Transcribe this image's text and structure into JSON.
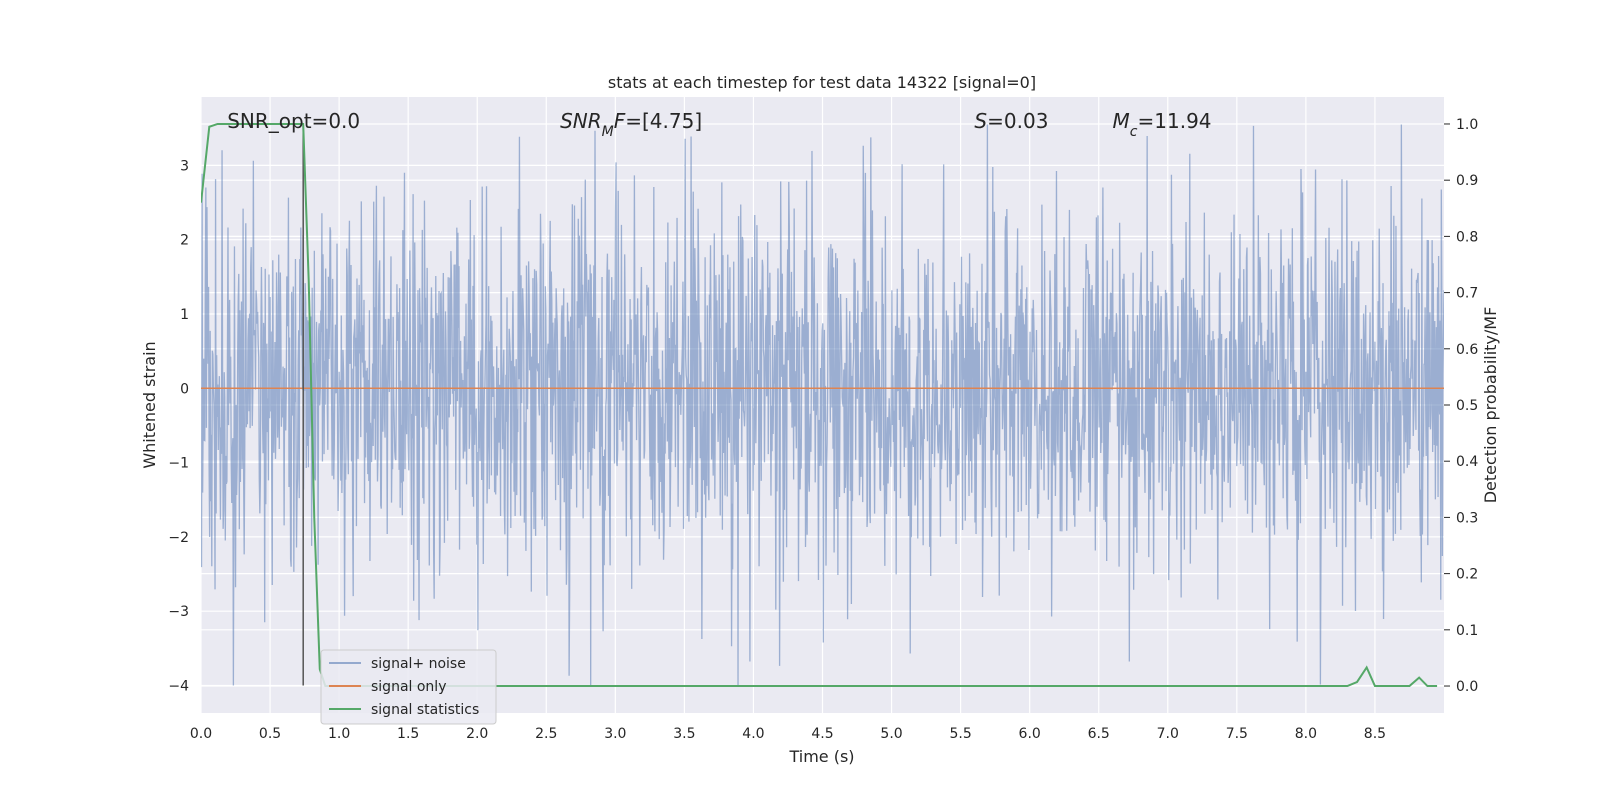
{
  "chart_data": {
    "type": "line",
    "title": "stats at each timestep for test data 14322 [signal=0]",
    "xlabel": "Time (s)",
    "ylabel_left": "Whitened strain",
    "ylabel_right": "Detection probability/MF",
    "xlim": [
      0.0,
      9.0
    ],
    "ylim_left": [
      -4.37,
      3.92
    ],
    "ylim_right": [
      -0.048,
      1.048
    ],
    "x_ticks": [
      0.0,
      0.5,
      1.0,
      1.5,
      2.0,
      2.5,
      3.0,
      3.5,
      4.0,
      4.5,
      5.0,
      5.5,
      6.0,
      6.5,
      7.0,
      7.5,
      8.0,
      8.5
    ],
    "y_ticks_left": [
      -4,
      -3,
      -2,
      -1,
      0,
      1,
      2,
      3
    ],
    "y_ticks_right": [
      0.0,
      0.1,
      0.2,
      0.3,
      0.4,
      0.5,
      0.6,
      0.7,
      0.8,
      0.9,
      1.0
    ],
    "grid": true,
    "legend_position": "lower-left",
    "annotations": [
      {
        "text": "SNR_opt=0.0",
        "x": 0.19,
        "y": 3.6
      },
      {
        "text": "SNR_MF=[4.75]",
        "x": 2.6,
        "y": 3.6
      },
      {
        "text": "S=0.03",
        "x": 5.6,
        "y": 3.6
      },
      {
        "text": "M_c=11.94",
        "x": 6.6,
        "y": 3.6
      }
    ],
    "marker_line": {
      "x": 0.74,
      "y_top": 3.55,
      "y_bottom": -4.0,
      "color": "#555555"
    },
    "series": [
      {
        "name": "signal+ noise",
        "axis": "left",
        "color": "#4c72b0",
        "opacity": 0.5,
        "noise_band": {
          "x_start": 0.0,
          "x_end": 9.0,
          "typical_amplitude": 1.3,
          "max": 3.55,
          "min": -4.0,
          "samples_per_second": 256
        }
      },
      {
        "name": "signal only",
        "axis": "left",
        "color": "#dd8452",
        "x": [
          0.0,
          9.0
        ],
        "y": [
          0.0,
          0.0
        ]
      },
      {
        "name": "signal statistics",
        "axis": "right",
        "color": "#55a868",
        "x": [
          0.0,
          0.06,
          0.12,
          0.2,
          0.3,
          0.4,
          0.5,
          0.6,
          0.7,
          0.74,
          0.78,
          0.82,
          0.86,
          0.9,
          1.0,
          2.0,
          3.0,
          4.0,
          5.0,
          6.0,
          7.0,
          8.0,
          8.3,
          8.37,
          8.44,
          8.5,
          8.6,
          8.7,
          8.75,
          8.82,
          8.88,
          8.95
        ],
        "y": [
          0.86,
          0.995,
          1.0,
          1.0,
          1.0,
          1.0,
          1.0,
          1.0,
          1.0,
          1.0,
          0.72,
          0.3,
          0.03,
          0.0,
          0.0,
          0.0,
          0.0,
          0.0,
          0.0,
          0.0,
          0.0,
          0.0,
          0.0,
          0.007,
          0.033,
          0.0,
          0.0,
          0.0,
          0.0,
          0.015,
          0.0,
          0.0
        ]
      }
    ]
  }
}
